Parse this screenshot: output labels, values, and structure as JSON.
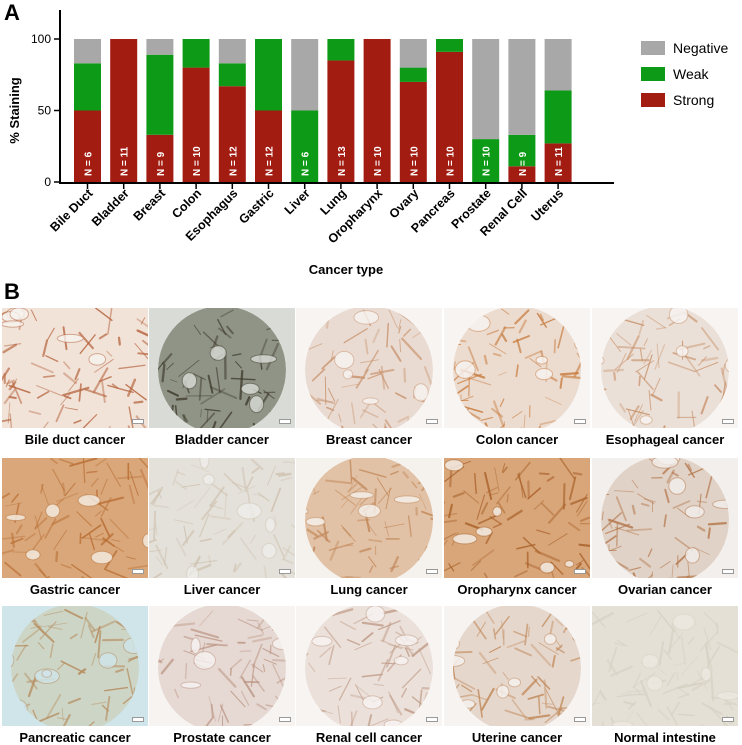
{
  "panel_a_label": "A",
  "panel_b_label": "B",
  "chart_data": {
    "type": "bar",
    "stacked": true,
    "title": "",
    "xlabel": "Cancer type",
    "ylabel": "% Staining",
    "ylim": [
      0,
      100
    ],
    "yticks": [
      0,
      50,
      100
    ],
    "categories": [
      "Bile Duct",
      "Bladder",
      "Breast",
      "Colon",
      "Esophagus",
      "Gastric",
      "Liver",
      "Lung",
      "Oropharynx",
      "Ovary",
      "Pancreas",
      "Prostate",
      "Renal Cell",
      "Uterus"
    ],
    "n_labels": [
      "N = 6",
      "N = 11",
      "N = 9",
      "N = 10",
      "N = 12",
      "N = 12",
      "N = 6",
      "N = 13",
      "N = 10",
      "N = 10",
      "N = 10",
      "N = 10",
      "N = 9",
      "N = 11"
    ],
    "series": [
      {
        "name": "Strong",
        "color": "#a31c12",
        "values": [
          50,
          100,
          33,
          80,
          67,
          50,
          0,
          85,
          100,
          70,
          91,
          0,
          11,
          27
        ]
      },
      {
        "name": "Weak",
        "color": "#0d9a16",
        "values": [
          33,
          0,
          56,
          20,
          16,
          50,
          50,
          15,
          0,
          10,
          9,
          30,
          22,
          37
        ]
      },
      {
        "name": "Negative",
        "color": "#a8a8a8",
        "values": [
          17,
          0,
          11,
          0,
          17,
          0,
          50,
          0,
          0,
          20,
          0,
          70,
          67,
          36
        ]
      }
    ],
    "legend": {
      "position": "right",
      "order": [
        "Negative",
        "Weak",
        "Strong"
      ]
    },
    "grid": false
  },
  "tiles": [
    {
      "caption": "Bile duct cancer",
      "bg": "#f6f2ef",
      "tissue": "#f1e3d8",
      "stain": "#b5623c",
      "shape": "full"
    },
    {
      "caption": "Bladder cancer",
      "bg": "#d8dbd6",
      "tissue": "#8f9486",
      "stain": "#3f3a2c",
      "shape": "circle"
    },
    {
      "caption": "Breast cancer",
      "bg": "#f7f4f2",
      "tissue": "#eadbd2",
      "stain": "#c7946f",
      "shape": "circle"
    },
    {
      "caption": "Colon cancer",
      "bg": "#f7f4f2",
      "tissue": "#ecdccf",
      "stain": "#c77a3d",
      "shape": "circle"
    },
    {
      "caption": "Esophageal cancer",
      "bg": "#f7f4f2",
      "tissue": "#ebe0d8",
      "stain": "#c68f66",
      "shape": "circle"
    },
    {
      "caption": "Gastric cancer",
      "bg": "#f3ede5",
      "tissue": "#d9a77a",
      "stain": "#b86d32",
      "shape": "full"
    },
    {
      "caption": "Liver cancer",
      "bg": "#ededea",
      "tissue": "#e4e1da",
      "stain": "#cfc2b0",
      "shape": "full"
    },
    {
      "caption": "Lung cancer",
      "bg": "#f5f1ed",
      "tissue": "#e2c2a6",
      "stain": "#c08556",
      "shape": "circle"
    },
    {
      "caption": "Oropharynx cancer",
      "bg": "#f4efe9",
      "tissue": "#d8a679",
      "stain": "#a9612a",
      "shape": "full"
    },
    {
      "caption": "Ovarian cancer",
      "bg": "#f2efec",
      "tissue": "#e0d2c6",
      "stain": "#b3754a",
      "shape": "circle"
    },
    {
      "caption": "Pancreatic cancer",
      "bg": "#cfe5ea",
      "tissue": "#cdd6c6",
      "stain": "#b58a5c",
      "shape": "circle"
    },
    {
      "caption": "Prostate cancer",
      "bg": "#f6f3f1",
      "tissue": "#e6d8d3",
      "stain": "#b9927f",
      "shape": "circle"
    },
    {
      "caption": "Renal cell cancer",
      "bg": "#f7f4f2",
      "tissue": "#ebe0da",
      "stain": "#bf9b86",
      "shape": "circle"
    },
    {
      "caption": "Uterine cancer",
      "bg": "#f6f3f1",
      "tissue": "#e6d7cd",
      "stain": "#c08a5a",
      "shape": "circle"
    },
    {
      "caption": "Normal intestine",
      "bg": "#ece9e1",
      "tissue": "#e4e0d6",
      "stain": "#d6d0c2",
      "shape": "full"
    }
  ]
}
